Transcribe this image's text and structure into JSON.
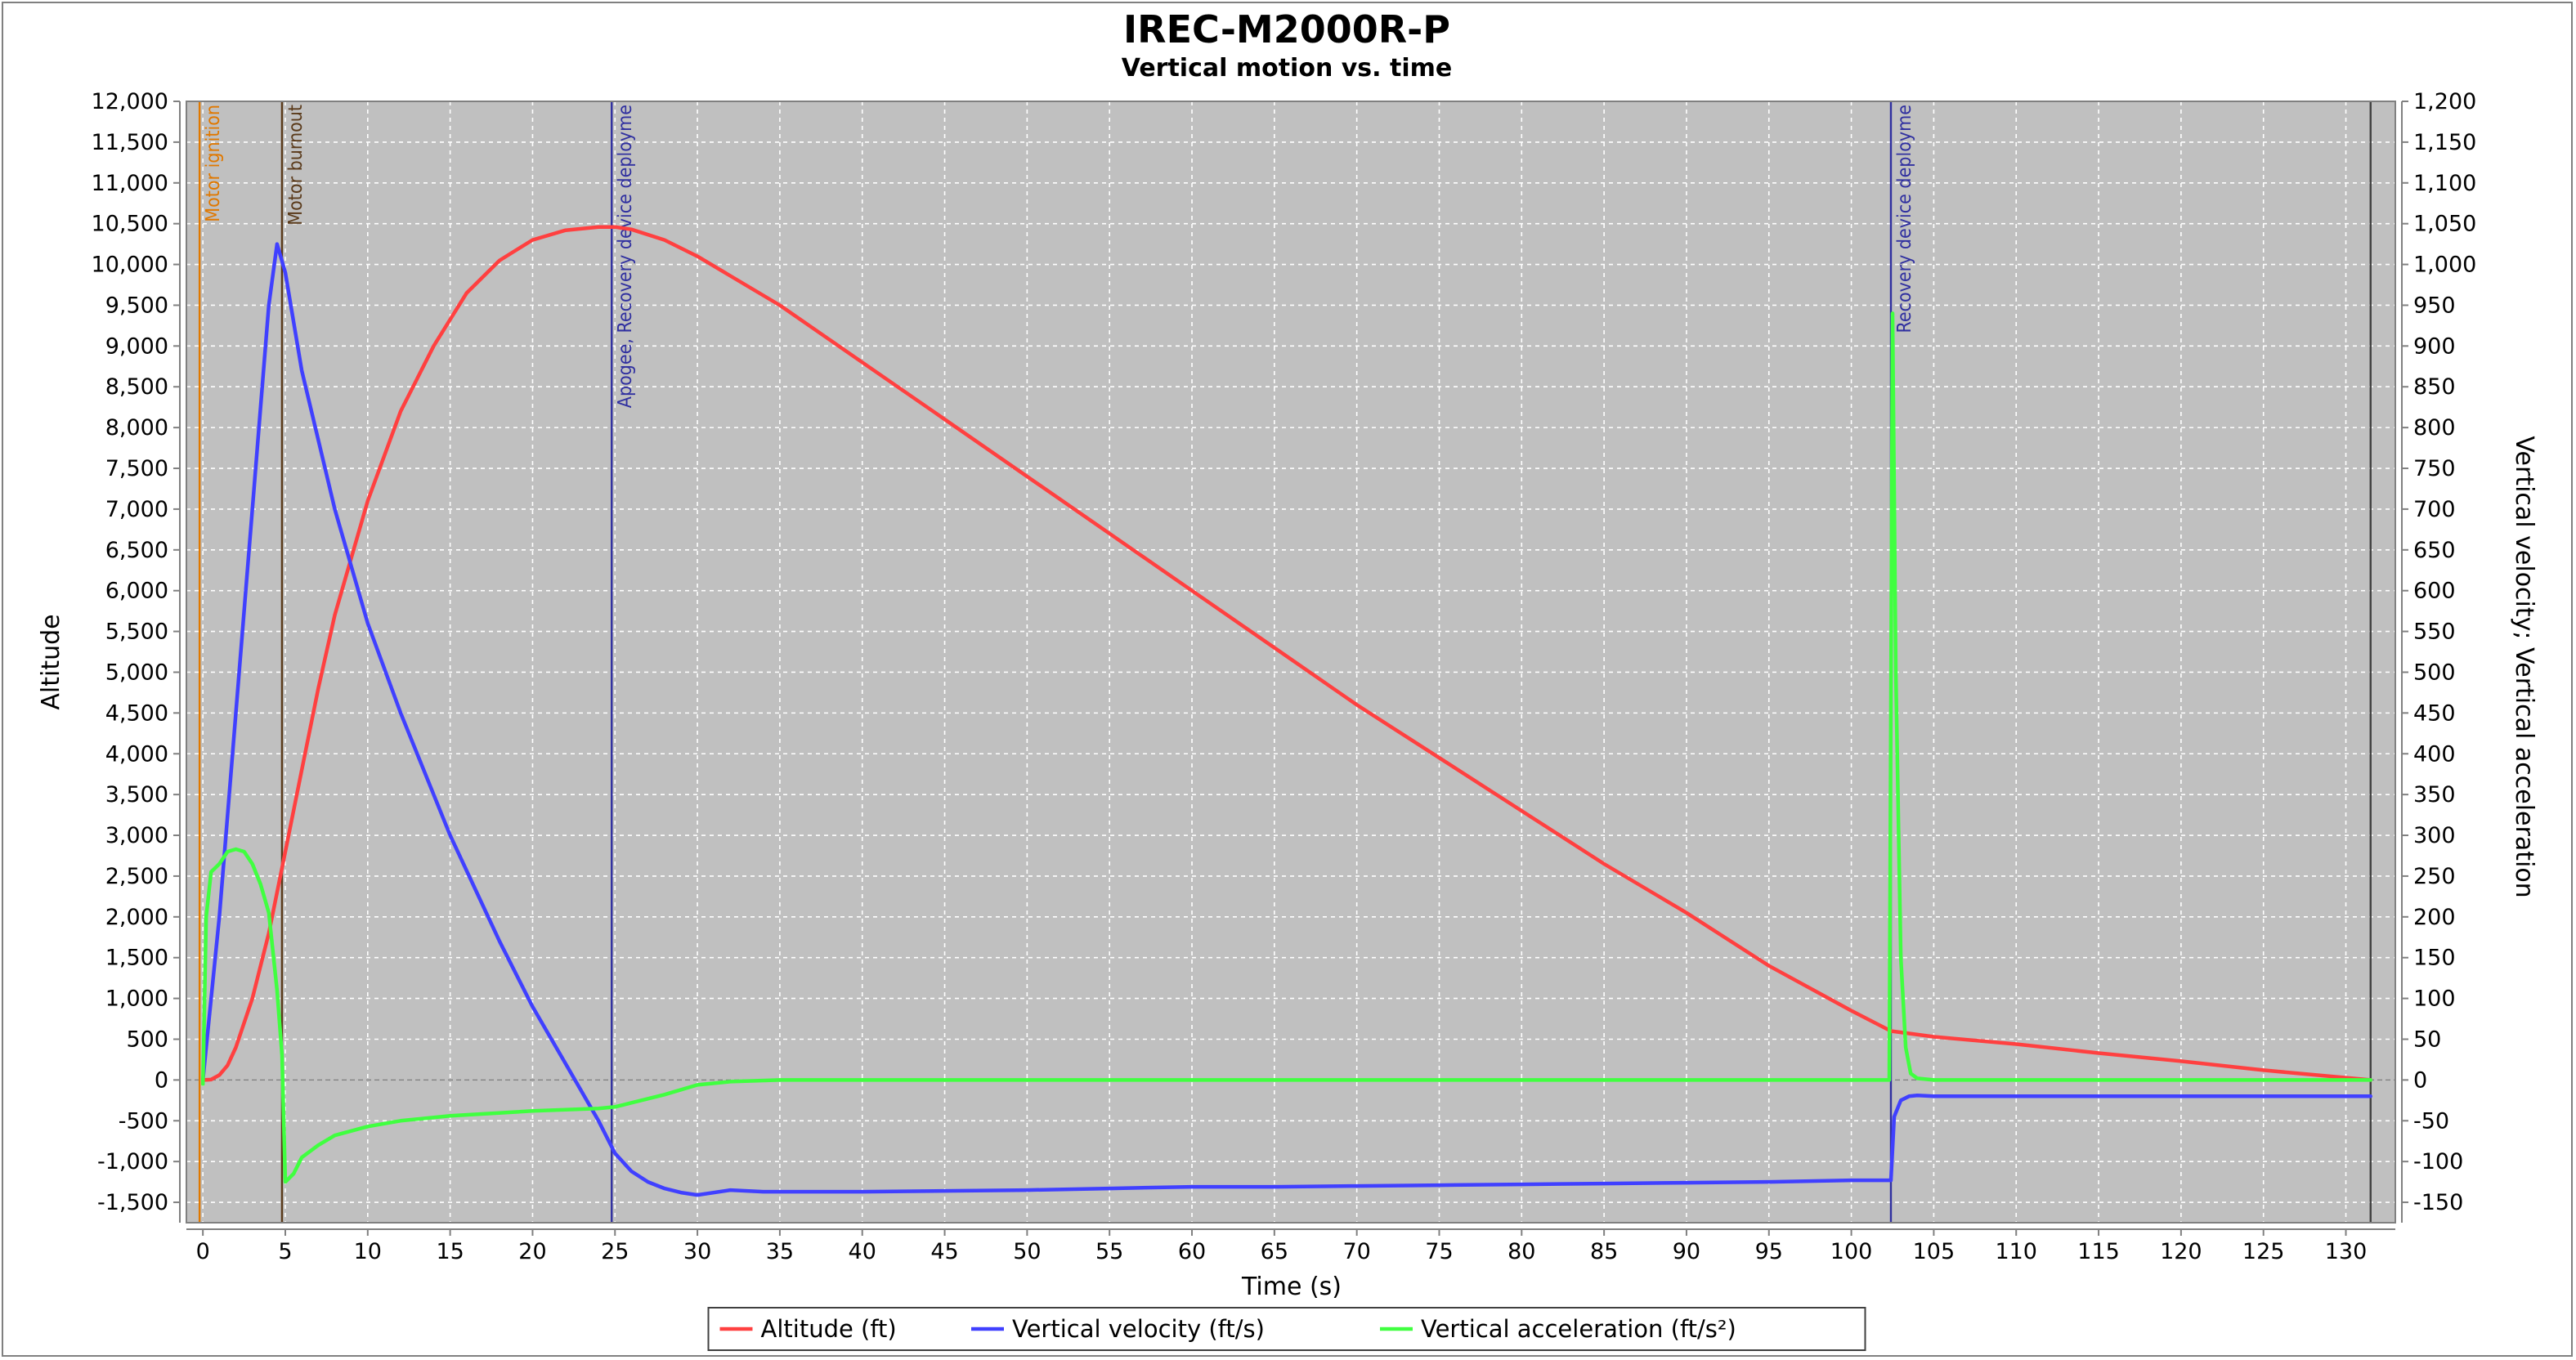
{
  "chart_data": {
    "type": "line",
    "title": "IREC-M2000R-P",
    "subtitle": "Vertical motion vs. time",
    "xlabel": "Time (s)",
    "ylabel_left": "Altitude",
    "ylabel_right": "Vertical velocity; Vertical acceleration",
    "xlim": [
      -1,
      133
    ],
    "ylim_left": [
      -1750,
      12000
    ],
    "ylim_right": [
      -175,
      1200
    ],
    "x_ticks": [
      0,
      5,
      10,
      15,
      20,
      25,
      30,
      35,
      40,
      45,
      50,
      55,
      60,
      65,
      70,
      75,
      80,
      85,
      90,
      95,
      100,
      105,
      110,
      115,
      120,
      125,
      130
    ],
    "x_tick_labels": [
      "0",
      "5",
      "10",
      "15",
      "20",
      "25",
      "30",
      "35",
      "40",
      "45",
      "50",
      "55",
      "60",
      "65",
      "70",
      "75",
      "80",
      "85",
      "90",
      "95",
      "100",
      "105",
      "110",
      "115",
      "120",
      "125",
      "130"
    ],
    "y_left_ticks": [
      -1500,
      -1000,
      -500,
      0,
      500,
      1000,
      1500,
      2000,
      2500,
      3000,
      3500,
      4000,
      4500,
      5000,
      5500,
      6000,
      6500,
      7000,
      7500,
      8000,
      8500,
      9000,
      9500,
      10000,
      10500,
      11000,
      11500,
      12000
    ],
    "y_left_tick_labels": [
      "-1,500",
      "-1,000",
      "-500",
      "0",
      "500",
      "1,000",
      "1,500",
      "2,000",
      "2,500",
      "3,000",
      "3,500",
      "4,000",
      "4,500",
      "5,000",
      "5,500",
      "6,000",
      "6,500",
      "7,000",
      "7,500",
      "8,000",
      "8,500",
      "9,000",
      "9,500",
      "10,000",
      "10,500",
      "11,000",
      "11,500",
      "12,000"
    ],
    "y_right_ticks": [
      -150,
      -100,
      -50,
      0,
      50,
      100,
      150,
      200,
      250,
      300,
      350,
      400,
      450,
      500,
      550,
      600,
      650,
      700,
      750,
      800,
      850,
      900,
      950,
      1000,
      1050,
      1100,
      1150,
      1200
    ],
    "y_right_tick_labels": [
      "-150",
      "-100",
      "-50",
      "0",
      "50",
      "100",
      "150",
      "200",
      "250",
      "300",
      "350",
      "400",
      "450",
      "500",
      "550",
      "600",
      "650",
      "700",
      "750",
      "800",
      "850",
      "900",
      "950",
      "1,000",
      "1,050",
      "1,100",
      "1,150",
      "1,200"
    ],
    "grid": true,
    "background": "#c0c0c0",
    "legend_position": "bottom-center",
    "events": [
      {
        "x": -0.2,
        "label": "Motor ignition",
        "color": "#e07800"
      },
      {
        "x": 4.8,
        "label": "Motor burnout",
        "color": "#5a3a1a"
      },
      {
        "x": 24.8,
        "label": "Apogee, Recovery device deployme",
        "color": "#3030a0"
      },
      {
        "x": 102.4,
        "label": "Recovery device deployme",
        "color": "#3030a0"
      },
      {
        "x": 131.5,
        "label": "",
        "color": "#404040"
      }
    ],
    "series": [
      {
        "name": "Altitude (ft)",
        "axis": "left",
        "color": "#ff4040",
        "x": [
          0,
          0.5,
          1,
          1.5,
          2,
          3,
          4,
          5,
          6,
          7,
          8,
          10,
          12,
          14,
          16,
          18,
          20,
          22,
          24,
          25,
          26,
          28,
          30,
          35,
          40,
          45,
          50,
          55,
          60,
          65,
          70,
          75,
          80,
          85,
          90,
          95,
          100,
          102.4,
          105,
          110,
          115,
          120,
          125,
          131.5
        ],
        "y": [
          0,
          5,
          60,
          180,
          400,
          1000,
          1800,
          2800,
          3800,
          4800,
          5700,
          7100,
          8200,
          9000,
          9650,
          10050,
          10300,
          10420,
          10460,
          10460,
          10430,
          10300,
          10100,
          9500,
          8800,
          8100,
          7400,
          6700,
          6000,
          5300,
          4600,
          3950,
          3300,
          2650,
          2050,
          1400,
          850,
          600,
          530,
          440,
          330,
          230,
          120,
          0
        ]
      },
      {
        "name": "Vertical velocity (ft/s)",
        "axis": "right",
        "color": "#4040ff",
        "x": [
          0,
          1,
          2,
          3,
          4,
          4.5,
          5,
          6,
          8,
          10,
          12,
          15,
          18,
          20,
          22,
          24,
          25,
          26,
          27,
          28,
          29,
          30,
          32,
          34,
          35,
          40,
          45,
          50,
          55,
          60,
          65,
          70,
          75,
          80,
          85,
          90,
          95,
          100,
          102.4,
          102.6,
          103,
          103.5,
          104,
          105,
          110,
          120,
          131.5
        ],
        "y": [
          0,
          200,
          450,
          700,
          950,
          1025,
          990,
          870,
          700,
          560,
          450,
          300,
          170,
          90,
          20,
          -50,
          -90,
          -112,
          -125,
          -133,
          -138,
          -141,
          -135,
          -137,
          -137,
          -137,
          -136,
          -135,
          -133,
          -131,
          -131,
          -130,
          -129,
          -128,
          -127,
          -126,
          -125,
          -123,
          -123,
          -45,
          -25,
          -20,
          -19,
          -20,
          -20,
          -20,
          -20
        ]
      },
      {
        "name": "Vertical acceleration (ft/s²)",
        "axis": "right",
        "color": "#40ff40",
        "x": [
          0,
          0.2,
          0.5,
          1,
          1.5,
          2,
          2.5,
          3,
          3.5,
          4,
          4.5,
          4.8,
          5,
          5.5,
          6,
          7,
          8,
          10,
          12,
          15,
          20,
          24,
          25,
          26,
          28,
          30,
          32,
          35,
          40,
          60,
          80,
          100,
          102.3,
          102.5,
          102.7,
          103,
          103.3,
          103.6,
          104,
          105,
          110,
          120,
          131.5
        ],
        "y": [
          -5,
          200,
          255,
          265,
          280,
          283,
          280,
          265,
          240,
          205,
          110,
          30,
          -125,
          -115,
          -95,
          -80,
          -68,
          -57,
          -50,
          -44,
          -38,
          -35,
          -33,
          -28,
          -18,
          -6,
          -2,
          0,
          0,
          0,
          0,
          0,
          0,
          940,
          500,
          150,
          40,
          8,
          2,
          0,
          0,
          0,
          0
        ]
      }
    ]
  }
}
